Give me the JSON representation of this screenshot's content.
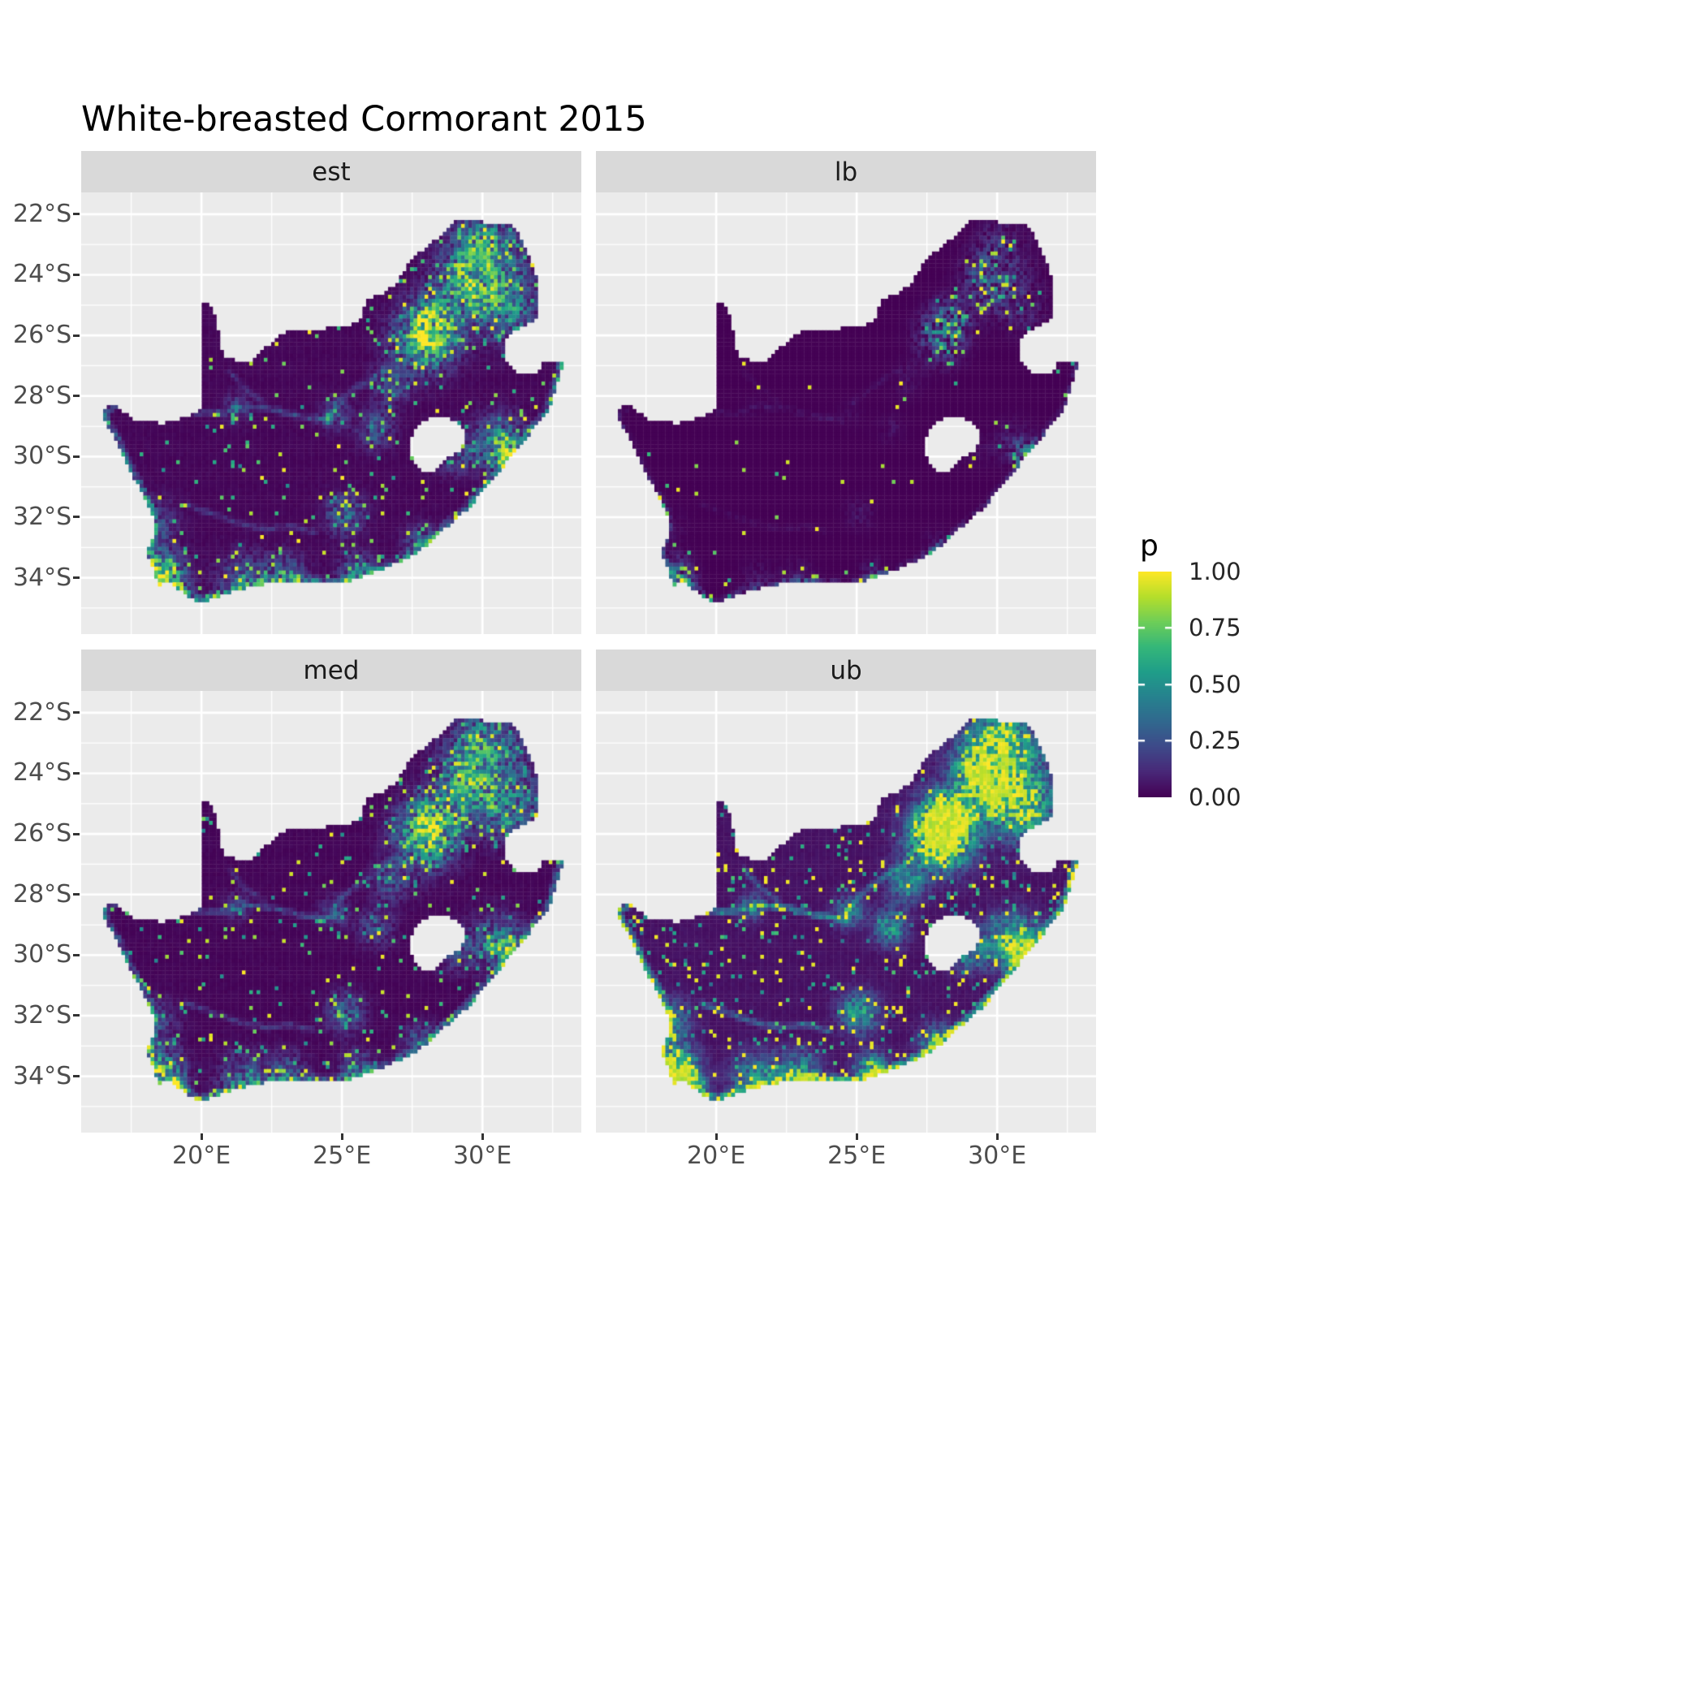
{
  "chart": {
    "title": "White-breasted Cormorant 2015"
  },
  "chart_data": {
    "type": "heatmap",
    "title": "White-breasted Cormorant 2015",
    "subtitle": "",
    "region": "South Africa",
    "facets": [
      {
        "name": "est"
      },
      {
        "name": "lb"
      },
      {
        "name": "med"
      },
      {
        "name": "ub"
      }
    ],
    "x": {
      "label": "",
      "range": [
        15.72,
        33.52
      ],
      "ticks": [
        {
          "value": 20,
          "label": "20°E"
        },
        {
          "value": 25,
          "label": "25°E"
        },
        {
          "value": 30,
          "label": "30°E"
        }
      ],
      "minor": [
        17.5,
        22.5,
        27.5,
        32.5
      ]
    },
    "y": {
      "label": "",
      "range": [
        -35.86,
        -21.28
      ],
      "ticks": [
        {
          "value": -22,
          "label": "22°S"
        },
        {
          "value": -24,
          "label": "24°S"
        },
        {
          "value": -26,
          "label": "26°S"
        },
        {
          "value": -28,
          "label": "28°S"
        },
        {
          "value": -30,
          "label": "30°S"
        },
        {
          "value": -32,
          "label": "32°S"
        },
        {
          "value": -34,
          "label": "34°S"
        }
      ],
      "minor": [
        -23,
        -25,
        -27,
        -29,
        -31,
        -33,
        -35
      ]
    },
    "colorbar": {
      "title": "p",
      "labels": [
        "1.00",
        "0.75",
        "0.50",
        "0.25",
        "0.00"
      ],
      "values": [
        1.0,
        0.75,
        0.5,
        0.25,
        0.0
      ],
      "palette": "viridis",
      "stops": [
        "#440154",
        "#482878",
        "#3e4a89",
        "#31688e",
        "#26828e",
        "#1f9e89",
        "#35b779",
        "#6ece58",
        "#b5de2b",
        "#fde725"
      ]
    },
    "panel_background": "#ebebeb",
    "gridline_color": "#ffffff",
    "strip_background": "#d9d9d9",
    "render_model": {
      "cell_size_deg": 0.13,
      "baseline": 0.02,
      "coast_amp": 0.55,
      "coast_range_deg": 0.25,
      "river_range_deg": 0.16,
      "coast_start_index": 38,
      "outline": [
        [
          16.45,
          -28.58
        ],
        [
          16.78,
          -28.23
        ],
        [
          17.6,
          -28.78
        ],
        [
          18.6,
          -28.9
        ],
        [
          19.3,
          -28.73
        ],
        [
          19.99,
          -28.45
        ],
        [
          19.99,
          -24.88
        ],
        [
          20.38,
          -25.06
        ],
        [
          20.62,
          -25.9
        ],
        [
          20.78,
          -26.75
        ],
        [
          21.7,
          -26.87
        ],
        [
          22.15,
          -26.5
        ],
        [
          22.85,
          -25.95
        ],
        [
          23.45,
          -25.78
        ],
        [
          24.25,
          -25.78
        ],
        [
          25.35,
          -25.65
        ],
        [
          25.65,
          -25.47
        ],
        [
          25.9,
          -24.78
        ],
        [
          26.45,
          -24.65
        ],
        [
          26.9,
          -24.3
        ],
        [
          27.35,
          -23.65
        ],
        [
          27.95,
          -23.1
        ],
        [
          28.35,
          -22.85
        ],
        [
          29.05,
          -22.2
        ],
        [
          29.5,
          -22.14
        ],
        [
          30.0,
          -22.25
        ],
        [
          30.65,
          -22.3
        ],
        [
          31.2,
          -22.4
        ],
        [
          31.55,
          -23.2
        ],
        [
          31.9,
          -23.95
        ],
        [
          31.95,
          -24.7
        ],
        [
          32.02,
          -25.45
        ],
        [
          31.4,
          -25.72
        ],
        [
          30.85,
          -26.05
        ],
        [
          30.82,
          -26.8
        ],
        [
          31.15,
          -27.2
        ],
        [
          31.95,
          -27.32
        ],
        [
          32.12,
          -26.86
        ],
        [
          32.88,
          -26.86
        ],
        [
          32.55,
          -27.95
        ],
        [
          32.3,
          -28.55
        ],
        [
          31.95,
          -28.95
        ],
        [
          31.4,
          -29.55
        ],
        [
          31.0,
          -29.95
        ],
        [
          30.6,
          -30.55
        ],
        [
          30.15,
          -31.0
        ],
        [
          29.5,
          -31.7
        ],
        [
          28.7,
          -32.35
        ],
        [
          28.05,
          -32.95
        ],
        [
          27.4,
          -33.3
        ],
        [
          26.4,
          -33.75
        ],
        [
          25.65,
          -34.0
        ],
        [
          24.85,
          -34.2
        ],
        [
          24.0,
          -34.15
        ],
        [
          23.35,
          -34.1
        ],
        [
          22.55,
          -34.15
        ],
        [
          22.1,
          -34.25
        ],
        [
          21.1,
          -34.45
        ],
        [
          20.0,
          -34.82
        ],
        [
          19.6,
          -34.65
        ],
        [
          19.3,
          -34.45
        ],
        [
          18.82,
          -34.1
        ],
        [
          18.45,
          -34.3
        ],
        [
          18.33,
          -33.9
        ],
        [
          18.05,
          -33.1
        ],
        [
          18.3,
          -32.6
        ],
        [
          18.25,
          -31.9
        ],
        [
          17.85,
          -31.1
        ],
        [
          17.35,
          -30.3
        ],
        [
          16.95,
          -29.45
        ],
        [
          16.6,
          -28.9
        ]
      ],
      "lesotho_hole": [
        [
          27.35,
          -29.55
        ],
        [
          27.65,
          -29.0
        ],
        [
          28.15,
          -28.68
        ],
        [
          28.75,
          -28.62
        ],
        [
          29.25,
          -29.05
        ],
        [
          29.45,
          -29.35
        ],
        [
          29.25,
          -29.75
        ],
        [
          28.7,
          -30.1
        ],
        [
          28.15,
          -30.55
        ],
        [
          27.75,
          -30.4
        ],
        [
          27.45,
          -30.0
        ]
      ],
      "hotspots": [
        [
          28.0,
          -26.05,
          0.95,
          0.7
        ],
        [
          28.35,
          -25.45,
          0.55,
          0.55
        ],
        [
          30.2,
          -23.6,
          0.5,
          1.0
        ],
        [
          31.0,
          -25.2,
          0.45,
          0.7
        ],
        [
          29.8,
          -24.6,
          0.4,
          0.6
        ],
        [
          29.2,
          -23.9,
          0.35,
          0.5
        ],
        [
          30.0,
          -22.8,
          0.3,
          0.5
        ],
        [
          30.6,
          -29.6,
          0.55,
          0.6
        ],
        [
          31.0,
          -29.85,
          0.5,
          0.3
        ],
        [
          29.0,
          -29.8,
          0.35,
          0.45
        ],
        [
          26.2,
          -29.1,
          0.35,
          0.4
        ],
        [
          26.75,
          -27.6,
          0.3,
          0.45
        ],
        [
          18.55,
          -33.85,
          0.85,
          0.5
        ],
        [
          19.0,
          -34.4,
          0.4,
          0.4
        ],
        [
          21.5,
          -34.2,
          0.4,
          0.6
        ],
        [
          23.0,
          -34.0,
          0.4,
          0.5
        ],
        [
          25.55,
          -33.85,
          0.5,
          0.4
        ],
        [
          27.85,
          -32.95,
          0.45,
          0.4
        ],
        [
          25.1,
          -31.9,
          0.4,
          0.45
        ],
        [
          24.75,
          -28.6,
          0.28,
          0.35
        ],
        [
          21.25,
          -28.4,
          0.25,
          0.3
        ],
        [
          18.35,
          -32.2,
          0.3,
          0.5
        ]
      ],
      "rivers": [
        {
          "amp": 0.55,
          "points": [
            [
              24.6,
              -28.8
            ],
            [
              23.6,
              -28.7
            ],
            [
              22.6,
              -28.45
            ],
            [
              21.6,
              -28.35
            ],
            [
              20.8,
              -28.55
            ],
            [
              20.0,
              -28.55
            ],
            [
              19.2,
              -28.45
            ],
            [
              18.2,
              -28.3
            ],
            [
              17.2,
              -28.25
            ],
            [
              16.5,
              -28.55
            ]
          ]
        },
        {
          "amp": 0.4,
          "points": [
            [
              27.0,
              -26.85
            ],
            [
              26.2,
              -27.3
            ],
            [
              25.4,
              -27.8
            ],
            [
              24.8,
              -28.3
            ],
            [
              24.6,
              -28.8
            ]
          ]
        },
        {
          "amp": 0.35,
          "points": [
            [
              19.5,
              -31.6
            ],
            [
              20.4,
              -31.9
            ],
            [
              21.3,
              -32.2
            ],
            [
              22.3,
              -32.4
            ],
            [
              23.2,
              -32.3
            ],
            [
              24.0,
              -32.5
            ]
          ]
        },
        {
          "amp": 0.3,
          "points": [
            [
              21.0,
              -27.2
            ],
            [
              21.6,
              -27.8
            ],
            [
              22.2,
              -28.2
            ]
          ]
        }
      ],
      "facet_rules": {
        "est": {
          "gain": 1.0
        },
        "med": {
          "gain": 0.92
        },
        "lb": {
          "gain": 0.5
        },
        "ub": {
          "gain": 1.6
        }
      }
    }
  }
}
